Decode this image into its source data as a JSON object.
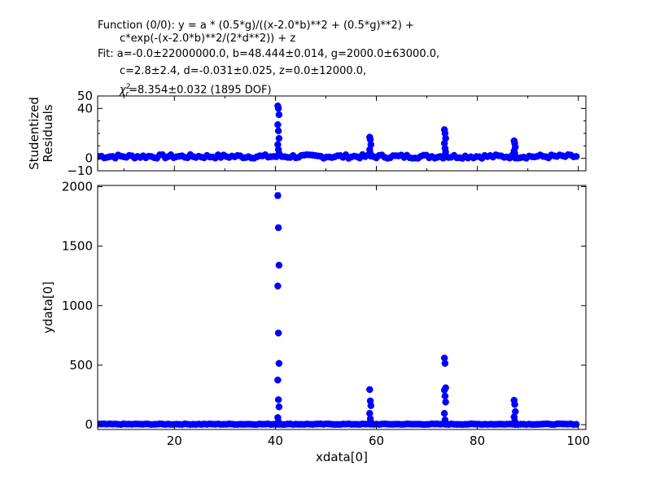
{
  "header": {
    "line1": "Function (0/0): y = a * (0.5*g)/((x-2.0*b)**2 + (0.5*g)**2) +",
    "line2": "c*exp(-(x-2.0*b)**2/(2*d**2)) + z",
    "line3": "Fit: a=-0.0±22000000.0, b=48.444±0.014, g=2000.0±63000.0,",
    "line4": "c=2.8±2.4, d=-0.031±0.025, z=0.0±12000.0,",
    "chi_symbol": "χ",
    "chi_sub": "r",
    "chi_sup": "2",
    "chi_value": "=8.354±0.032 (1895 DOF)"
  },
  "colors": {
    "points": "#0000ff",
    "fit_line": "#ff0000",
    "axes": "#000000"
  },
  "chart_data": [
    {
      "type": "scatter",
      "ylabel": "Studentized\nResiduals",
      "xlim": [
        4.8,
        101.5
      ],
      "ylim": [
        -10,
        50
      ],
      "xticks": [
        20,
        40,
        60,
        80,
        100
      ],
      "xticklabels": [],
      "yticks": [
        -10,
        0,
        40,
        50
      ],
      "yticklabels": [
        "−10",
        "0",
        "40",
        "50"
      ],
      "baseline": {
        "x": [
          5,
          100
        ],
        "y": [
          1.5,
          1.5
        ]
      },
      "peaks": [
        {
          "center": 40.6,
          "values": [
            42,
            40,
            35,
            27,
            22,
            16,
            11,
            7,
            4
          ]
        },
        {
          "center": 58.8,
          "values": [
            17,
            15,
            11,
            7,
            4
          ]
        },
        {
          "center": 73.6,
          "values": [
            23,
            20,
            16,
            12,
            8,
            5
          ]
        },
        {
          "center": 87.4,
          "values": [
            14,
            12,
            9,
            6,
            4
          ]
        }
      ]
    },
    {
      "type": "scatter",
      "xlabel": "xdata[0]",
      "ylabel": "ydata[0]",
      "xlim": [
        4.8,
        101.5
      ],
      "ylim": [
        -40,
        2010
      ],
      "xticks": [
        20,
        40,
        60,
        80,
        100
      ],
      "xticklabels": [
        "20",
        "40",
        "60",
        "80",
        "100"
      ],
      "yticks": [
        0,
        500,
        1000,
        1500,
        2000
      ],
      "yticklabels": [
        "0",
        "500",
        "1000",
        "1500",
        "2000"
      ],
      "fit_line": {
        "x": [
          5,
          100
        ],
        "y": [
          3,
          3
        ]
      },
      "baseline": {
        "x": [
          5,
          100
        ],
        "y": [
          4,
          4
        ]
      },
      "peaks": [
        {
          "center": 40.6,
          "values": [
            1925,
            1655,
            1340,
            1165,
            770,
            515,
            375,
            210,
            150,
            60,
            25
          ]
        },
        {
          "center": 58.8,
          "values": [
            295,
            200,
            160,
            95,
            50,
            20
          ]
        },
        {
          "center": 73.6,
          "values": [
            560,
            515,
            310,
            290,
            240,
            190,
            95,
            40
          ]
        },
        {
          "center": 87.4,
          "values": [
            205,
            170,
            110,
            65,
            30
          ]
        }
      ]
    }
  ]
}
